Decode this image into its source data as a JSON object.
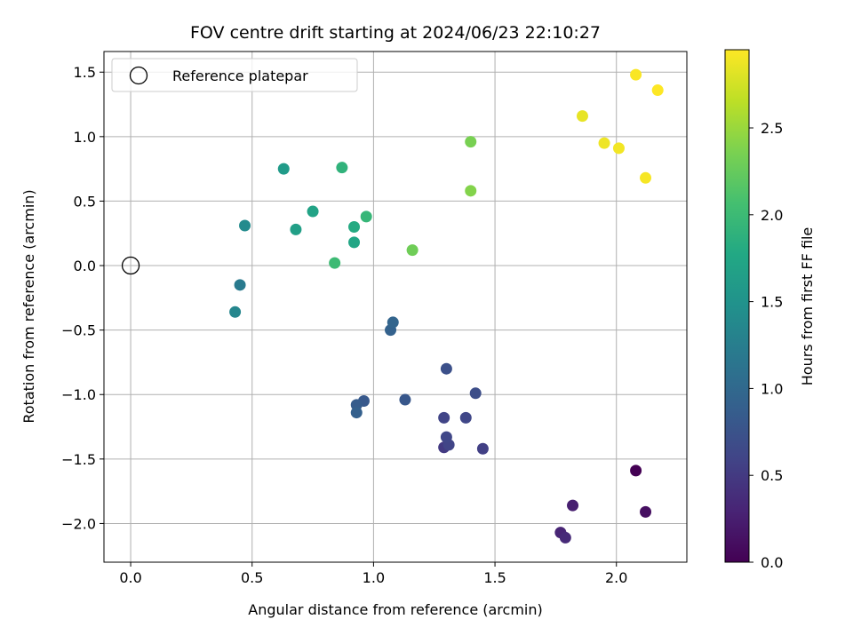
{
  "chart_data": {
    "type": "scatter",
    "title": "FOV centre drift starting at 2024/06/23 22:10:27",
    "xlabel": "Angular distance from reference (arcmin)",
    "ylabel": "Rotation from reference (arcmin)",
    "xlim": [
      -0.11,
      2.29
    ],
    "ylim": [
      -2.3,
      1.66
    ],
    "xticks": [
      0.0,
      0.5,
      1.0,
      1.5,
      2.0
    ],
    "xtick_labels": [
      "0.0",
      "0.5",
      "1.0",
      "1.5",
      "2.0"
    ],
    "yticks": [
      1.5,
      1.0,
      0.5,
      0.0,
      -0.5,
      -1.0,
      -1.5,
      -2.0
    ],
    "ytick_labels": [
      "1.5",
      "1.0",
      "0.5",
      "0.0",
      "−0.5",
      "−1.0",
      "−1.5",
      "−2.0"
    ],
    "grid": true,
    "legend": {
      "placement": "top-left",
      "entries": [
        "Reference platepar"
      ]
    },
    "reference_point": {
      "x": 0.0,
      "y": 0.0
    },
    "colorbar": {
      "label": "Hours from first FF file",
      "colormap": "viridis",
      "range": [
        0.0,
        2.95
      ],
      "ticks": [
        0.0,
        0.5,
        1.0,
        1.5,
        2.0,
        2.5
      ],
      "tick_labels": [
        "0.0",
        "0.5",
        "1.0",
        "1.5",
        "2.0",
        "2.5"
      ]
    },
    "points": [
      {
        "x": 2.08,
        "y": -1.59,
        "t": 0.0
      },
      {
        "x": 2.12,
        "y": -1.91,
        "t": 0.12
      },
      {
        "x": 1.82,
        "y": -1.86,
        "t": 0.25
      },
      {
        "x": 1.77,
        "y": -2.07,
        "t": 0.3
      },
      {
        "x": 1.79,
        "y": -2.11,
        "t": 0.35
      },
      {
        "x": 1.45,
        "y": -1.42,
        "t": 0.55
      },
      {
        "x": 1.29,
        "y": -1.41,
        "t": 0.5
      },
      {
        "x": 1.31,
        "y": -1.39,
        "t": 0.6
      },
      {
        "x": 1.3,
        "y": -1.33,
        "t": 0.62
      },
      {
        "x": 1.29,
        "y": -1.18,
        "t": 0.6
      },
      {
        "x": 1.38,
        "y": -1.18,
        "t": 0.62
      },
      {
        "x": 1.42,
        "y": -0.99,
        "t": 0.7
      },
      {
        "x": 1.3,
        "y": -0.8,
        "t": 0.72
      },
      {
        "x": 1.13,
        "y": -1.04,
        "t": 0.8
      },
      {
        "x": 0.96,
        "y": -1.05,
        "t": 0.82
      },
      {
        "x": 0.93,
        "y": -1.08,
        "t": 0.85
      },
      {
        "x": 0.93,
        "y": -1.14,
        "t": 0.9
      },
      {
        "x": 1.07,
        "y": -0.5,
        "t": 0.92
      },
      {
        "x": 1.08,
        "y": -0.44,
        "t": 0.95
      },
      {
        "x": 0.45,
        "y": -0.15,
        "t": 1.2
      },
      {
        "x": 0.43,
        "y": -0.36,
        "t": 1.35
      },
      {
        "x": 0.47,
        "y": 0.31,
        "t": 1.4
      },
      {
        "x": 0.63,
        "y": 0.75,
        "t": 1.6
      },
      {
        "x": 0.68,
        "y": 0.28,
        "t": 1.65
      },
      {
        "x": 0.75,
        "y": 0.42,
        "t": 1.7
      },
      {
        "x": 0.92,
        "y": 0.18,
        "t": 1.75
      },
      {
        "x": 0.92,
        "y": 0.3,
        "t": 1.8
      },
      {
        "x": 0.87,
        "y": 0.76,
        "t": 1.9
      },
      {
        "x": 0.97,
        "y": 0.38,
        "t": 1.95
      },
      {
        "x": 0.84,
        "y": 0.02,
        "t": 2.0
      },
      {
        "x": 1.16,
        "y": 0.12,
        "t": 2.3
      },
      {
        "x": 1.4,
        "y": 0.96,
        "t": 2.35
      },
      {
        "x": 1.4,
        "y": 0.58,
        "t": 2.4
      },
      {
        "x": 1.86,
        "y": 1.16,
        "t": 2.85
      },
      {
        "x": 1.95,
        "y": 0.95,
        "t": 2.88
      },
      {
        "x": 2.01,
        "y": 0.91,
        "t": 2.9
      },
      {
        "x": 2.12,
        "y": 0.68,
        "t": 2.92
      },
      {
        "x": 2.08,
        "y": 1.48,
        "t": 2.93
      },
      {
        "x": 2.17,
        "y": 1.36,
        "t": 2.95
      }
    ]
  }
}
